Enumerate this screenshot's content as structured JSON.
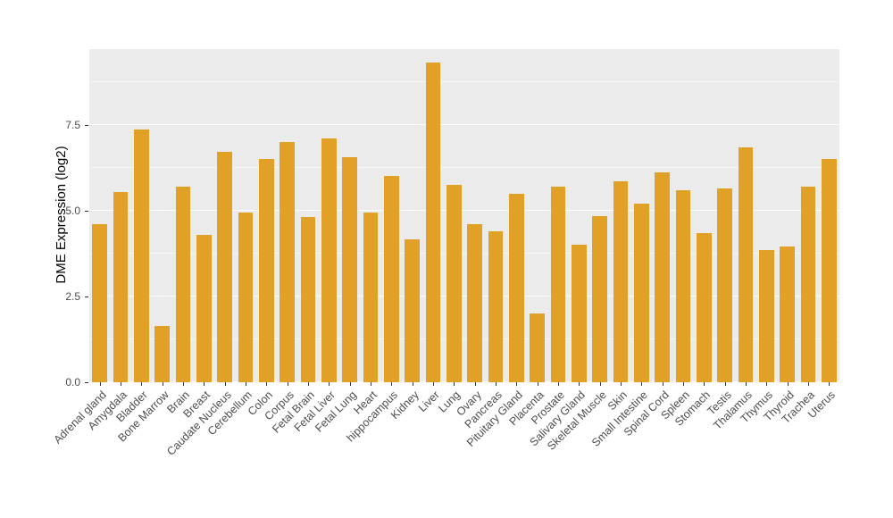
{
  "chart_data": {
    "type": "bar",
    "title": "",
    "xlabel": "",
    "ylabel": "DME Expression (log2)",
    "ylim": [
      0,
      9.7
    ],
    "yticks": [
      0.0,
      2.5,
      5.0,
      7.5
    ],
    "yticks_minor": [
      1.25,
      3.75,
      6.25,
      8.75
    ],
    "grid": "on",
    "legend": "none",
    "bar_color": "#E0A126",
    "panel_bg": "#EBEBEB",
    "grid_color": "#FFFFFF",
    "axis_text_color": "#4D4D4D",
    "categories": [
      "Adrenal gland",
      "Amygdala",
      "Bladder",
      "Bone Marrow",
      "Brain",
      "Breast",
      "Caudate Nucleus",
      "Cerebellum",
      "Colon",
      "Corpus",
      "Fetal Brain",
      "Fetal Liver",
      "Fetal Lung",
      "Heart",
      "hippocampus",
      "Kidney",
      "Liver",
      "Lung",
      "Ovary",
      "Pancreas",
      "Pituitary Gland",
      "Placenta",
      "Prostate",
      "Salivary Gland",
      "Skeletal Muscle",
      "Skin",
      "Small Intestine",
      "Spinal Cord",
      "Spleen",
      "Stomach",
      "Testis",
      "Thalamus",
      "Thymus",
      "Thyroid",
      "Trachea",
      "Uterus"
    ],
    "values": [
      4.6,
      5.55,
      7.35,
      1.65,
      5.7,
      4.3,
      6.7,
      4.95,
      6.5,
      7.0,
      4.8,
      7.1,
      6.55,
      4.95,
      6.0,
      4.15,
      9.3,
      5.75,
      4.6,
      4.4,
      5.5,
      2.0,
      5.7,
      4.0,
      4.85,
      5.85,
      5.2,
      6.1,
      5.6,
      4.35,
      5.65,
      6.85,
      3.85,
      3.95,
      5.7,
      6.5
    ]
  }
}
